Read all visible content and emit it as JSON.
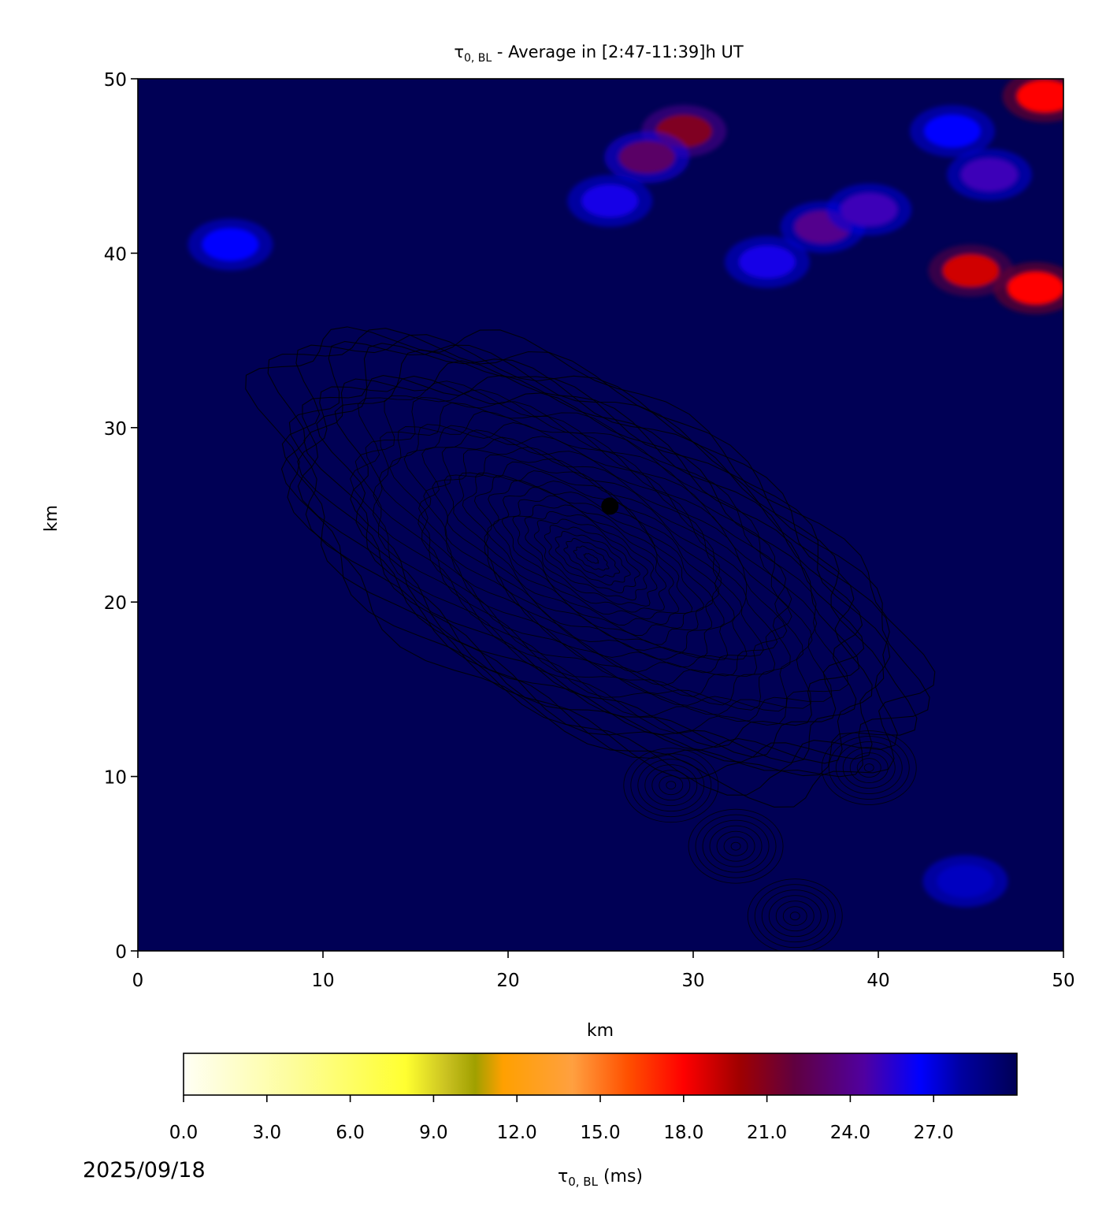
{
  "chart_data": {
    "type": "heatmap",
    "title": {
      "main": "τ",
      "subscript": "0, BL",
      "rest": " - Average in [2:47-11:39]h UT"
    },
    "xlabel": "km",
    "ylabel": "km",
    "xlim": [
      0,
      50
    ],
    "ylim": [
      0,
      50
    ],
    "x_ticks": [
      0,
      10,
      20,
      30,
      40,
      50
    ],
    "y_ticks": [
      0,
      10,
      20,
      30,
      40,
      50
    ],
    "grid": false,
    "background_value_ms": 30,
    "marker": {
      "x": 25.5,
      "y": 25.5,
      "color": "#000000"
    },
    "hotspots": [
      {
        "x": 48.5,
        "y": 38.0,
        "value": 18.0
      },
      {
        "x": 45.0,
        "y": 39.0,
        "value": 19.0
      },
      {
        "x": 49.0,
        "y": 49.0,
        "value": 18.0
      },
      {
        "x": 29.5,
        "y": 47.0,
        "value": 21.0
      },
      {
        "x": 27.5,
        "y": 45.5,
        "value": 23.0
      },
      {
        "x": 25.5,
        "y": 43.0,
        "value": 26.0
      },
      {
        "x": 37.0,
        "y": 41.5,
        "value": 24.0
      },
      {
        "x": 39.5,
        "y": 42.5,
        "value": 25.0
      },
      {
        "x": 34.0,
        "y": 39.5,
        "value": 26.0
      },
      {
        "x": 46.0,
        "y": 44.5,
        "value": 25.0
      },
      {
        "x": 44.0,
        "y": 47.0,
        "value": 26.5
      },
      {
        "x": 5.0,
        "y": 40.5,
        "value": 26.5
      },
      {
        "x": 44.7,
        "y": 4.0,
        "value": 27.5
      }
    ],
    "colorbar": {
      "label_main": "τ",
      "label_sub": "0, BL",
      "label_unit": " (ms)",
      "vmin": 0,
      "vmax": 30,
      "ticks": [
        "0.0",
        "3.0",
        "6.0",
        "9.0",
        "12.0",
        "15.0",
        "18.0",
        "21.0",
        "24.0",
        "27.0"
      ],
      "stops": [
        {
          "v": 0,
          "color": "#fffff5"
        },
        {
          "v": 4,
          "color": "#fdfd9a"
        },
        {
          "v": 8,
          "color": "#ffff30"
        },
        {
          "v": 9.5,
          "color": "#c8c020"
        },
        {
          "v": 10.5,
          "color": "#a0a000"
        },
        {
          "v": 11.5,
          "color": "#ffa000"
        },
        {
          "v": 14,
          "color": "#ffa040"
        },
        {
          "v": 16,
          "color": "#ff5000"
        },
        {
          "v": 18,
          "color": "#ff0000"
        },
        {
          "v": 20,
          "color": "#a00000"
        },
        {
          "v": 22,
          "color": "#600040"
        },
        {
          "v": 24.5,
          "color": "#5000a0"
        },
        {
          "v": 26.5,
          "color": "#0000ff"
        },
        {
          "v": 28,
          "color": "#0000a0"
        },
        {
          "v": 30,
          "color": "#000055"
        }
      ]
    }
  },
  "footer": {
    "date": "2025/09/18"
  }
}
